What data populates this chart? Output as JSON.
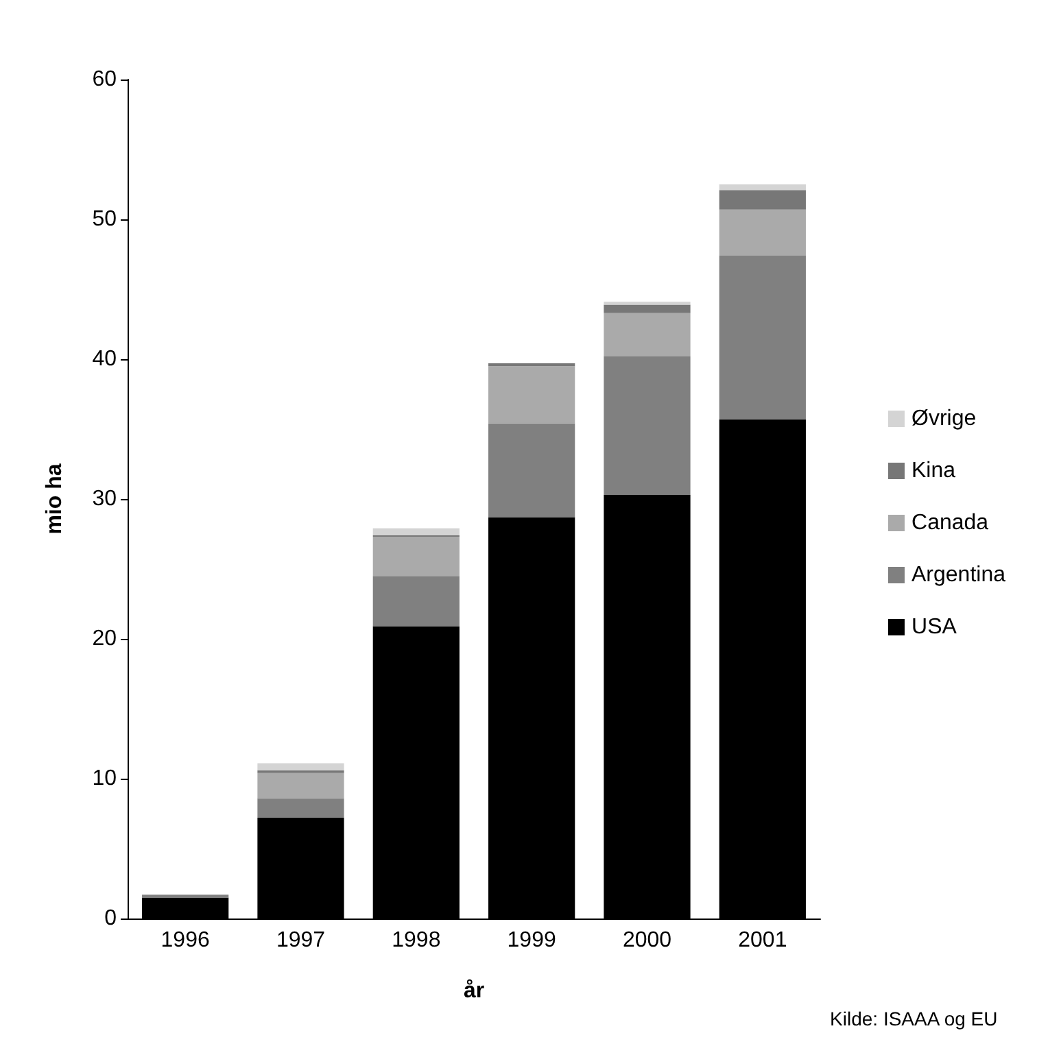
{
  "chart_data": {
    "type": "bar",
    "stacked": true,
    "xlabel": "år",
    "ylabel": "mio ha",
    "categories": [
      "1996",
      "1997",
      "1998",
      "1999",
      "2000",
      "2001"
    ],
    "series": [
      {
        "name": "USA",
        "color": "#000000",
        "values": [
          1.5,
          7.2,
          20.9,
          28.7,
          30.3,
          35.7
        ]
      },
      {
        "name": "Argentina",
        "color": "#808080",
        "values": [
          0.2,
          1.4,
          3.6,
          6.7,
          9.9,
          11.7
        ]
      },
      {
        "name": "Canada",
        "color": "#aaaaaa",
        "values": [
          null,
          1.8,
          2.8,
          4.1,
          3.1,
          3.3
        ]
      },
      {
        "name": "Kina",
        "color": "#777777",
        "values": [
          0,
          0.2,
          0.1,
          0.2,
          0.6,
          1.4
        ]
      },
      {
        "name": "Øvrige",
        "color": "#d4d4d4",
        "values": [
          0,
          0.5,
          0.5,
          null,
          0.2,
          0.4
        ]
      }
    ],
    "ylim": [
      0,
      60
    ],
    "yticks": [
      0,
      10,
      20,
      30,
      40,
      50,
      60
    ],
    "grid": false,
    "legend": "right",
    "annotations": [
      "Kilde: ISAAA og EU"
    ]
  }
}
